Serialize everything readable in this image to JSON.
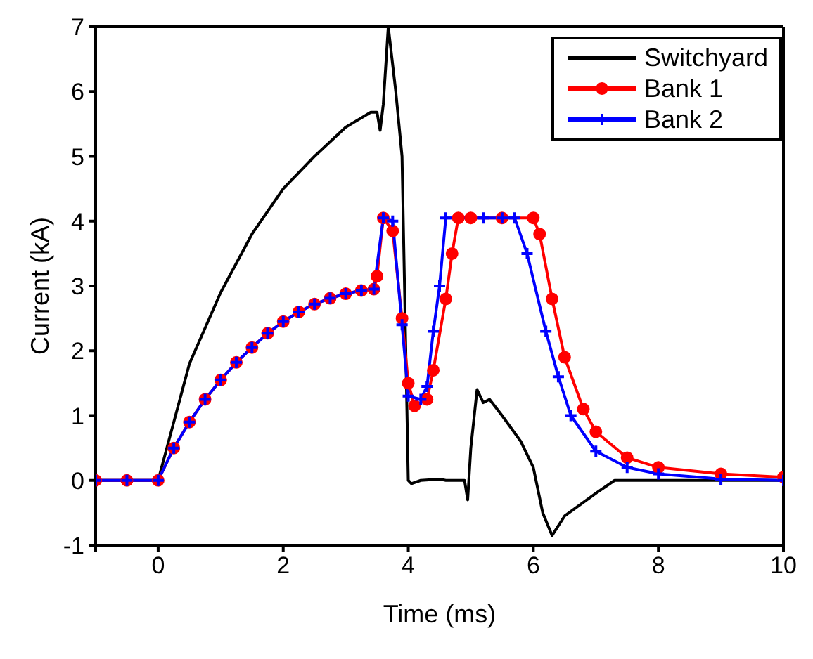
{
  "chart_data": {
    "type": "line",
    "xlabel": "Time (ms)",
    "ylabel": "Current (kA)",
    "xlim": [
      -1,
      10
    ],
    "ylim": [
      -1,
      7
    ],
    "xticks": [
      {
        "value": -1,
        "label": null
      },
      0,
      2,
      4,
      6,
      8,
      10
    ],
    "yticks": [
      -1,
      0,
      1,
      2,
      3,
      4,
      5,
      6,
      7
    ],
    "grid": false,
    "legend": "top right",
    "series": [
      {
        "name": "Switchyard",
        "color": "#000000",
        "marker": "none",
        "x": [
          -1,
          0,
          0.5,
          1,
          1.5,
          2,
          2.5,
          3,
          3.4,
          3.5,
          3.55,
          3.6,
          3.68,
          3.8,
          3.9,
          3.95,
          4,
          4.05,
          4.2,
          4.5,
          4.6,
          4.9,
          4.95,
          5,
          5.1,
          5.2,
          5.3,
          5.5,
          5.8,
          6,
          6.15,
          6.3,
          6.5,
          7,
          7.3,
          10
        ],
        "values": [
          0,
          0,
          1.8,
          2.9,
          3.8,
          4.5,
          5,
          5.45,
          5.68,
          5.68,
          5.4,
          5.8,
          7,
          6,
          5,
          2.5,
          0,
          -0.05,
          0,
          0.02,
          0,
          0,
          -0.3,
          0.5,
          1.4,
          1.2,
          1.25,
          1,
          0.6,
          0.2,
          -0.5,
          -0.85,
          -0.55,
          -0.2,
          0,
          0
        ]
      },
      {
        "name": "Bank 1",
        "color": "#ff0000",
        "marker": "circle",
        "x": [
          -1,
          -0.5,
          0,
          0.25,
          0.5,
          0.75,
          1,
          1.25,
          1.5,
          1.75,
          2,
          2.25,
          2.5,
          2.75,
          3,
          3.25,
          3.45,
          3.5,
          3.6,
          3.75,
          3.9,
          4,
          4.1,
          4.3,
          4.4,
          4.6,
          4.7,
          4.8,
          5,
          5.5,
          6,
          6.1,
          6.3,
          6.5,
          6.8,
          7,
          7.5,
          8,
          9,
          10
        ],
        "values": [
          0,
          0,
          0,
          0.5,
          0.9,
          1.25,
          1.55,
          1.82,
          2.05,
          2.27,
          2.45,
          2.6,
          2.72,
          2.81,
          2.88,
          2.93,
          2.95,
          3.15,
          4.05,
          3.85,
          2.5,
          1.5,
          1.15,
          1.25,
          1.7,
          2.8,
          3.5,
          4.05,
          4.05,
          4.05,
          4.05,
          3.8,
          2.8,
          1.9,
          1.1,
          0.75,
          0.35,
          0.2,
          0.1,
          0.05
        ]
      },
      {
        "name": "Bank 2",
        "color": "#0000ff",
        "marker": "cross",
        "x": [
          -1,
          -0.5,
          0,
          0.25,
          0.5,
          0.75,
          1,
          1.25,
          1.5,
          1.75,
          2,
          2.25,
          2.5,
          2.75,
          3,
          3.25,
          3.45,
          3.6,
          3.75,
          3.9,
          4,
          4.2,
          4.3,
          4.4,
          4.5,
          4.6,
          5.2,
          5.5,
          5.7,
          5.9,
          6.2,
          6.4,
          6.6,
          7,
          7.5,
          8,
          9,
          10
        ],
        "values": [
          0,
          0,
          0,
          0.5,
          0.9,
          1.25,
          1.55,
          1.82,
          2.05,
          2.27,
          2.45,
          2.6,
          2.72,
          2.81,
          2.88,
          2.93,
          2.95,
          4.05,
          4,
          2.4,
          1.3,
          1.25,
          1.45,
          2.3,
          3,
          4.05,
          4.05,
          4.05,
          4.05,
          3.5,
          2.3,
          1.6,
          1,
          0.45,
          0.2,
          0.1,
          0.02,
          0
        ]
      }
    ]
  }
}
